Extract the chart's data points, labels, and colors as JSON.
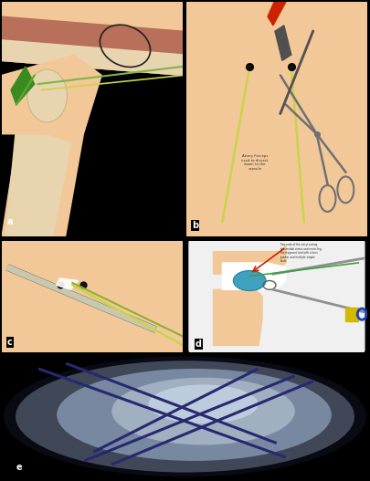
{
  "background_color": "#000000",
  "figure_width": 4.05,
  "figure_height": 5.27,
  "dpi": 100,
  "panel_a": {
    "skin_color": "#f2c898",
    "bone_color": "#e8d5b0",
    "muscle_color": "#b8705a",
    "suture_color": "#7fb34a",
    "suture_color2": "#c8d44a",
    "bg_color": "#000000",
    "label": "a",
    "ellipse_color": "#222222"
  },
  "panel_b": {
    "skin_color": "#f2c898",
    "dot_color": "#111111",
    "suture_color": "#c8d44a",
    "scissors_color": "#707070",
    "blade_color": "#cc2200",
    "handle_color": "#505050",
    "label": "b"
  },
  "panel_c": {
    "skin_color": "#f2c898",
    "dot_color": "#111111",
    "probe_color": "#c8c8b0",
    "probe_dark": "#606050",
    "suture_color": "#c8d44a",
    "suture_color2": "#90b030",
    "label": "c"
  },
  "panel_d": {
    "bg_color": "#000000",
    "white_color": "#f0f0f0",
    "skin_color": "#f2c898",
    "teal_color": "#40a0c0",
    "teal_dark": "#2080a0",
    "yellow_color": "#d4b800",
    "blue_color": "#1840c0",
    "rod_color": "#909090",
    "green_line": "#40a040",
    "label": "d",
    "annotation_color": "#222222"
  },
  "panel_e": {
    "bg_color": "#000000",
    "oval_outer": "#0a0a14",
    "oval_mid": "#404858",
    "oval_inner": "#7888a0",
    "oval_bright": "#a0b0c0",
    "suture_color": "#282870",
    "label": "e"
  }
}
